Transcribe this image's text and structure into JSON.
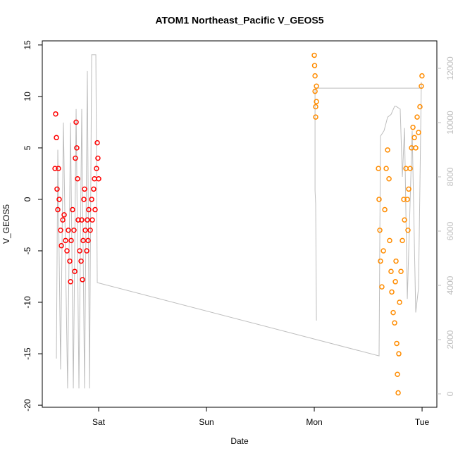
{
  "chart_data": {
    "type": "scatter",
    "title": "ATOM1 Northeast_Pacific V_GEOS5",
    "xlabel": "Date",
    "ylabel": "V_GEOS5",
    "xlim": [
      -0.523,
      3.137
    ],
    "xticks": [
      {
        "value": 0,
        "label": "Sat"
      },
      {
        "value": 1,
        "label": "Sun"
      },
      {
        "value": 2,
        "label": "Mon"
      },
      {
        "value": 3,
        "label": "Tue"
      }
    ],
    "ylim": [
      -20.2,
      15.4
    ],
    "yticks": [
      -20,
      -15,
      -10,
      -5,
      0,
      5,
      10,
      15
    ],
    "y2lim": [
      -494,
      13013
    ],
    "y2ticks": [
      0,
      2000,
      4000,
      6000,
      8000,
      10000,
      12000
    ],
    "y2color": "#bebebe",
    "series": [
      {
        "style": "line",
        "axis": "y2",
        "color": "#bebebe",
        "x": [
          -0.392,
          -0.379,
          -0.353,
          -0.327,
          -0.288,
          -0.261,
          -0.235,
          -0.209,
          -0.183,
          -0.157,
          -0.131,
          -0.105,
          -0.085,
          -0.065,
          -0.026,
          -0.013,
          2.601,
          2.614,
          2.647,
          2.667,
          2.68,
          2.712,
          2.745,
          2.758,
          2.797,
          2.817,
          2.837,
          2.863,
          2.908,
          2.941,
          2.967,
          2.993,
          2.993,
          2.007,
          2.007,
          2.013,
          2.02
        ],
        "values": [
          1300,
          9000,
          900,
          10000,
          200,
          10000,
          200,
          10500,
          200,
          10500,
          200,
          11900,
          200,
          12500,
          12500,
          4100,
          1400,
          9500,
          9700,
          10000,
          10200,
          10300,
          10600,
          10600,
          10500,
          8000,
          9800,
          3500,
          9700,
          3000,
          3900,
          11500,
          11270,
          11270,
          7500,
          7000,
          2700
        ]
      },
      {
        "style": "points",
        "color": "#ff0000",
        "x": [
          -0.405,
          -0.399,
          -0.392,
          -0.386,
          -0.379,
          -0.373,
          -0.366,
          -0.353,
          -0.346,
          -0.333,
          -0.32,
          -0.307,
          -0.294,
          -0.281,
          -0.268,
          -0.261,
          -0.255,
          -0.242,
          -0.229,
          -0.222,
          -0.216,
          -0.209,
          -0.203,
          -0.196,
          -0.19,
          -0.176,
          -0.163,
          -0.157,
          -0.15,
          -0.144,
          -0.137,
          -0.131,
          -0.124,
          -0.111,
          -0.105,
          -0.098,
          -0.092,
          -0.078,
          -0.065,
          -0.059,
          -0.046,
          -0.039,
          -0.033,
          -0.02,
          -0.013,
          -0.007,
          0
        ],
        "values": [
          3,
          8.3,
          6,
          1,
          -1,
          3,
          0,
          -3,
          -4.5,
          -2,
          -1.5,
          -4,
          -5,
          -3,
          -6,
          -8,
          -4,
          -1,
          -3,
          -7,
          4,
          7.5,
          5,
          2,
          -2,
          -5,
          -6,
          -2,
          -7.8,
          -4,
          0,
          1,
          -3,
          -5,
          -2,
          -4,
          -1,
          -3,
          0,
          -2,
          1,
          2,
          -1,
          3,
          5.5,
          4,
          2
        ]
      },
      {
        "style": "points",
        "color": "#ff8c00",
        "x": [
          2.0,
          2.003,
          2.007,
          2.007,
          2.013,
          2.013,
          2.02,
          2.02,
          2.595,
          2.601,
          2.608,
          2.614,
          2.627,
          2.641,
          2.654,
          2.667,
          2.68,
          2.693,
          2.699,
          2.712,
          2.719,
          2.732,
          2.745,
          2.752,
          2.758,
          2.765,
          2.771,
          2.778,
          2.784,
          2.791,
          2.804,
          2.817,
          2.83,
          2.837,
          2.85,
          2.863,
          2.869,
          2.876,
          2.889,
          2.902,
          2.915,
          2.928,
          2.941,
          2.954,
          2.967,
          2.98,
          2.993,
          2.999
        ],
        "values": [
          14,
          13,
          12,
          10.5,
          9,
          8,
          11,
          9.5,
          3,
          0,
          -3,
          -6,
          -8.5,
          -5,
          -1,
          3,
          4.8,
          2,
          -4,
          -7,
          -9,
          -11,
          -12,
          -8,
          -6,
          -14,
          -17,
          -18.8,
          -15,
          -10,
          -7,
          -4,
          0,
          -2,
          3,
          0,
          -3,
          1,
          3,
          5,
          7,
          6,
          5,
          8,
          6.5,
          9,
          11,
          12
        ]
      }
    ]
  }
}
